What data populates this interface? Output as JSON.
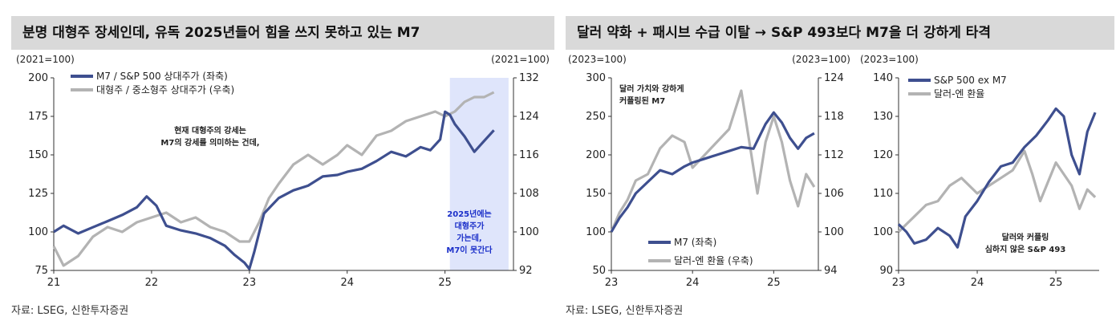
{
  "left_panel": {
    "title": "분명 대형주 장세인데, 유독 2025년들어 힘을 쓰지 못하고 있는 M7",
    "source": "자료: LSEG, 신한투자증권"
  },
  "right_panel": {
    "title": "달러 약화 + 패시브 수급 이탈 → S&P 493보다 M7을 더 강하게 타격",
    "source": "자료: LSEG, 신한투자증권"
  },
  "colors": {
    "navy": "#3e4f8f",
    "gray": "#b3b3b3",
    "highlight": "#dfe5fb",
    "title_bg": "#d9d9d9"
  },
  "chart_data": [
    {
      "type": "line",
      "left_unit": "(2021=100)",
      "right_unit": "(2021=100)",
      "ylim_left": [
        75,
        200
      ],
      "ylim_right": [
        92,
        132
      ],
      "yticks_left": [
        "200",
        "175",
        "150",
        "125",
        "100",
        "75"
      ],
      "yticks_right": [
        "132",
        "124",
        "116",
        "108",
        "100",
        "92"
      ],
      "xlim": [
        21,
        25.7
      ],
      "xticks": [
        "21",
        "22",
        "23",
        "24",
        "25"
      ],
      "highlight_x": [
        25.05,
        25.65
      ],
      "annotation": [
        "현재 대형주의 강세는",
        "M7의 강세를 의미하는 건데,"
      ],
      "highlight_note": [
        "2025년에는",
        "대형주가",
        "가는데,",
        "M7이 못간다"
      ],
      "series": [
        {
          "name": "M7 / S&P 500 상대주가 (좌축)",
          "axis": "left",
          "color": "#3e4f8f",
          "x": [
            21.0,
            21.1,
            21.25,
            21.4,
            21.55,
            21.7,
            21.85,
            21.95,
            22.05,
            22.15,
            22.3,
            22.45,
            22.6,
            22.75,
            22.85,
            22.95,
            23.0,
            23.05,
            23.15,
            23.3,
            23.45,
            23.6,
            23.75,
            23.9,
            24.0,
            24.15,
            24.3,
            24.45,
            24.6,
            24.75,
            24.85,
            24.95,
            25.0,
            25.05,
            25.1,
            25.2,
            25.3,
            25.4,
            25.5
          ],
          "y": [
            100,
            104,
            99,
            103,
            107,
            111,
            116,
            123,
            117,
            104,
            101,
            99,
            96,
            91,
            85,
            80,
            76,
            87,
            112,
            122,
            127,
            130,
            136,
            137,
            139,
            141,
            146,
            152,
            149,
            155,
            153,
            160,
            178,
            176,
            170,
            162,
            152,
            159,
            166
          ]
        },
        {
          "name": "대형주 / 중소형주 상대주가 (우축)",
          "axis": "right",
          "color": "#b3b3b3",
          "x": [
            21.0,
            21.1,
            21.25,
            21.4,
            21.55,
            21.7,
            21.85,
            22.0,
            22.15,
            22.3,
            22.45,
            22.6,
            22.75,
            22.9,
            23.0,
            23.1,
            23.2,
            23.3,
            23.45,
            23.6,
            23.75,
            23.9,
            24.0,
            24.15,
            24.3,
            24.45,
            24.6,
            24.75,
            24.9,
            25.0,
            25.1,
            25.2,
            25.3,
            25.4,
            25.5
          ],
          "y": [
            97,
            93,
            95,
            99,
            101,
            100,
            102,
            103,
            104,
            102,
            103,
            101,
            100,
            98,
            98,
            102,
            107,
            110,
            114,
            116,
            114,
            116,
            118,
            116,
            120,
            121,
            123,
            124,
            125,
            124,
            125,
            127,
            128,
            128,
            129
          ]
        }
      ]
    },
    {
      "type": "line",
      "left_unit": "(2023=100)",
      "right_unit": "(2023=100)",
      "ylim_left": [
        50,
        300
      ],
      "ylim_right": [
        94,
        124
      ],
      "yticks_left": [
        "300",
        "250",
        "200",
        "150",
        "100",
        "50"
      ],
      "yticks_right": [
        "124",
        "118",
        "112",
        "106",
        "100",
        "94"
      ],
      "xlim": [
        23,
        25.55
      ],
      "xticks": [
        "23",
        "24",
        "25"
      ],
      "annotation": [
        "달러 가치와 강하게",
        "커플링된 M7"
      ],
      "series": [
        {
          "name": "M7 (좌축)",
          "axis": "left",
          "color": "#3e4f8f",
          "x": [
            23.0,
            23.1,
            23.2,
            23.3,
            23.45,
            23.6,
            23.75,
            23.9,
            24.0,
            24.15,
            24.3,
            24.45,
            24.6,
            24.75,
            24.9,
            25.0,
            25.1,
            25.2,
            25.3,
            25.4,
            25.5
          ],
          "y": [
            100,
            118,
            132,
            150,
            165,
            180,
            175,
            185,
            190,
            195,
            200,
            205,
            210,
            208,
            240,
            255,
            242,
            222,
            208,
            222,
            228
          ]
        },
        {
          "name": "달러-엔 환율 (우축)",
          "axis": "right",
          "color": "#b3b3b3",
          "x": [
            23.0,
            23.1,
            23.2,
            23.3,
            23.45,
            23.6,
            23.75,
            23.9,
            24.0,
            24.15,
            24.3,
            24.45,
            24.6,
            24.7,
            24.8,
            24.9,
            25.0,
            25.1,
            25.2,
            25.3,
            25.4,
            25.5
          ],
          "y": [
            100,
            103,
            105,
            108,
            109,
            113,
            115,
            114,
            110,
            112,
            114,
            116,
            122,
            114,
            106,
            114,
            118,
            114,
            108,
            104,
            109,
            107
          ]
        }
      ]
    },
    {
      "type": "line",
      "left_unit": "(2023=100)",
      "ylim_left": [
        90,
        140
      ],
      "yticks_left": [
        "140",
        "130",
        "120",
        "110",
        "100",
        "90"
      ],
      "xlim": [
        23,
        25.55
      ],
      "xticks": [
        "23",
        "24",
        "25"
      ],
      "annotation": [
        "달러와 커플링",
        "심하지 않은 S&P 493"
      ],
      "series": [
        {
          "name": "S&P 500 ex M7",
          "axis": "left",
          "color": "#3e4f8f",
          "x": [
            23.0,
            23.1,
            23.2,
            23.35,
            23.5,
            23.65,
            23.75,
            23.85,
            24.0,
            24.15,
            24.3,
            24.45,
            24.6,
            24.75,
            24.9,
            25.0,
            25.1,
            25.2,
            25.3,
            25.4,
            25.5
          ],
          "y": [
            102,
            100,
            97,
            98,
            101,
            99,
            96,
            104,
            108,
            113,
            117,
            118,
            122,
            125,
            129,
            132,
            130,
            120,
            115,
            126,
            131
          ]
        },
        {
          "name": "달러-엔 환율",
          "axis": "left",
          "color": "#b3b3b3",
          "x": [
            23.0,
            23.1,
            23.2,
            23.35,
            23.5,
            23.65,
            23.8,
            24.0,
            24.15,
            24.3,
            24.45,
            24.6,
            24.7,
            24.8,
            24.9,
            25.0,
            25.1,
            25.2,
            25.3,
            25.4,
            25.5
          ],
          "y": [
            100,
            102,
            104,
            107,
            108,
            112,
            114,
            110,
            112,
            114,
            116,
            121,
            115,
            108,
            113,
            118,
            115,
            112,
            106,
            111,
            109
          ]
        }
      ]
    }
  ]
}
